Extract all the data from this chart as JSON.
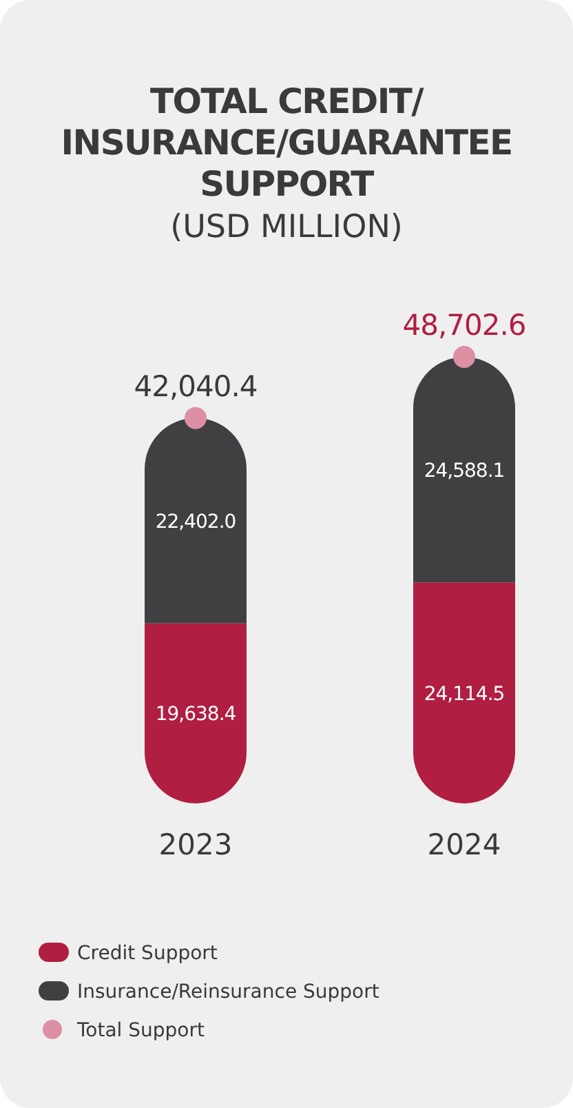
{
  "chart_data": {
    "type": "bar",
    "title": "TOTAL CREDIT/\nINSURANCE/GUARANTEE\nSUPPORT",
    "subtitle": "(USD MILLION)",
    "categories": [
      "2023",
      "2024"
    ],
    "stacked": true,
    "legend": "bottom left",
    "marker": "circle",
    "series": [
      {
        "name": "Credit Support",
        "color": "#b01e42",
        "values": [
          19638.4,
          24114.5
        ],
        "value_labels": [
          "19,638.4",
          "24,114.5"
        ]
      },
      {
        "name": "Insurance/Reinsurance Support",
        "color": "#404042",
        "values": [
          22402.0,
          24588.1
        ],
        "value_labels": [
          "22,402.0",
          "24,588.1"
        ]
      },
      {
        "name": "Total Support",
        "type": "scatter",
        "color": "#dd8fa3",
        "values": [
          42040.4,
          48702.6
        ],
        "value_labels": [
          "42,040.4",
          "48,702.6"
        ]
      }
    ]
  }
}
